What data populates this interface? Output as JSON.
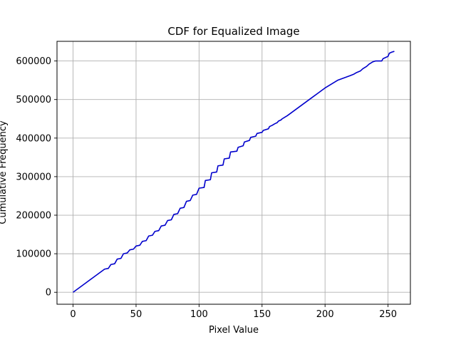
{
  "chart_data": {
    "type": "line",
    "title": "CDF for Equalized Image",
    "xlabel": "Pixel Value",
    "ylabel": "Cumulative Frequency",
    "xlim": [
      -12.75,
      267.75
    ],
    "ylim": [
      -31000,
      651000
    ],
    "xticks": [
      0,
      50,
      100,
      150,
      200,
      250
    ],
    "xtick_labels": [
      "0",
      "50",
      "100",
      "150",
      "200",
      "250"
    ],
    "yticks": [
      0,
      100000,
      200000,
      300000,
      400000,
      500000,
      600000
    ],
    "ytick_labels": [
      "0",
      "100000",
      "200000",
      "300000",
      "400000",
      "500000",
      "600000"
    ],
    "grid": true,
    "series": [
      {
        "color": "#0000cc",
        "x": [
          0,
          5,
          10,
          15,
          20,
          25,
          28,
          30,
          33,
          35,
          38,
          40,
          43,
          45,
          48,
          50,
          53,
          55,
          58,
          60,
          63,
          65,
          68,
          70,
          73,
          75,
          78,
          80,
          83,
          85,
          88,
          90,
          93,
          95,
          98,
          100,
          104,
          105,
          109,
          110,
          114,
          115,
          119,
          120,
          124,
          125,
          130,
          131,
          135,
          136,
          140,
          141,
          145,
          146,
          150,
          151,
          155,
          156,
          158,
          160,
          162,
          163,
          165,
          166,
          168,
          170,
          175,
          180,
          185,
          190,
          195,
          200,
          205,
          210,
          215,
          220,
          223,
          225,
          228,
          230,
          233,
          235,
          238,
          240,
          245,
          246,
          250,
          251,
          253,
          255
        ],
        "y": [
          0,
          12000,
          24000,
          36000,
          48000,
          60000,
          62000,
          72000,
          74000,
          86000,
          88000,
          100000,
          102000,
          110000,
          112000,
          120000,
          122000,
          132000,
          134000,
          146000,
          148000,
          158000,
          160000,
          172000,
          174000,
          186000,
          188000,
          202000,
          204000,
          218000,
          220000,
          236000,
          238000,
          252000,
          254000,
          270000,
          272000,
          290000,
          292000,
          310000,
          312000,
          328000,
          330000,
          346000,
          348000,
          364000,
          366000,
          376000,
          380000,
          390000,
          394000,
          402000,
          405000,
          412000,
          415000,
          420000,
          424000,
          430000,
          433000,
          437000,
          440000,
          444000,
          447000,
          450000,
          454000,
          458000,
          470000,
          482000,
          494000,
          506000,
          518000,
          530000,
          540000,
          550000,
          556000,
          562000,
          566000,
          570000,
          574000,
          580000,
          586000,
          592000,
          598000,
          600000,
          600000,
          606000,
          612000,
          620000,
          623000,
          625000
        ]
      }
    ]
  }
}
